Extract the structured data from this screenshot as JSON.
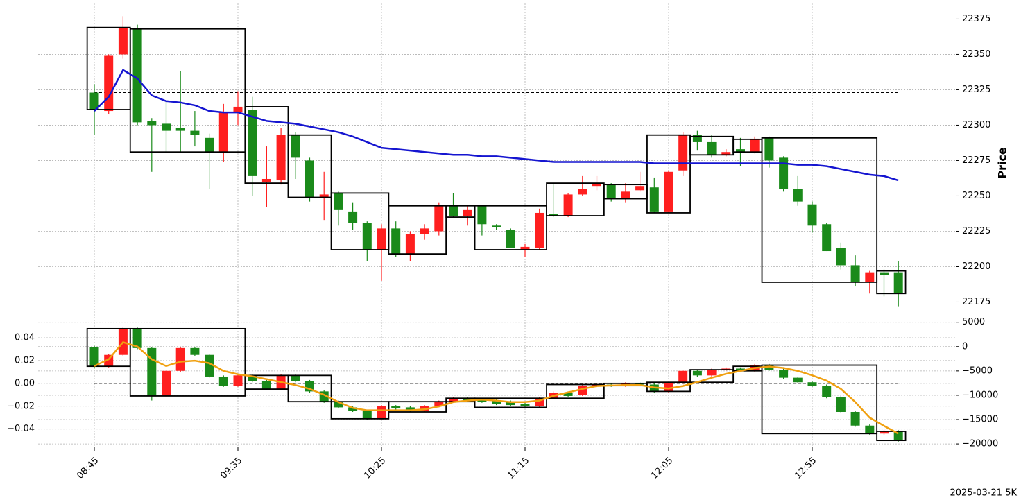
{
  "chart_data": [
    {
      "type": "candlestick",
      "ylabel": "Price",
      "ylim": [
        22162,
        22386
      ],
      "yticks": [
        22175,
        22200,
        22225,
        22250,
        22275,
        22300,
        22325,
        22350,
        22375
      ],
      "grid": true,
      "up_color": "#ff1f1f",
      "down_color": "#1a8a1a",
      "open": [
        22323,
        22310,
        22350,
        22368,
        22303,
        22301,
        22298,
        22296,
        22291,
        22281,
        22309,
        22311,
        22260,
        22261,
        22293,
        22275,
        22249,
        22252,
        22239,
        22231,
        22212,
        22227,
        22209,
        22223,
        22225,
        22243,
        22236,
        22243,
        22229,
        22226,
        22212,
        22213,
        22237,
        22236,
        22251,
        22257,
        22258,
        22248,
        22254,
        22256,
        22239,
        22268,
        22293,
        22288,
        22279,
        22283,
        22281,
        22291,
        22277,
        22255,
        22244,
        22230,
        22213,
        22201,
        22189,
        22196,
        22196
      ],
      "high": [
        22329,
        22350,
        22377,
        22371,
        22305,
        22317,
        22338,
        22310,
        22294,
        22315,
        22324,
        22320,
        22285,
        22298,
        22295,
        22277,
        22267,
        22253,
        22245,
        22232,
        22230,
        22232,
        22225,
        22230,
        22245,
        22252,
        22243,
        22243,
        22230,
        22227,
        22216,
        22241,
        22258,
        22252,
        22264,
        22264,
        22259,
        22259,
        22267,
        22263,
        22268,
        22295,
        22296,
        22293,
        22283,
        22291,
        22292,
        22292,
        22278,
        22264,
        22246,
        22231,
        22217,
        22208,
        22197,
        22198,
        22204
      ],
      "low": [
        22293,
        22308,
        22347,
        22300,
        22267,
        22281,
        22281,
        22285,
        22255,
        22274,
        22300,
        22250,
        22242,
        22258,
        22262,
        22246,
        22233,
        22229,
        22226,
        22204,
        22190,
        22207,
        22204,
        22219,
        22222,
        22235,
        22229,
        22222,
        22226,
        22213,
        22207,
        22212,
        22235,
        22235,
        22250,
        22254,
        22246,
        22245,
        22253,
        22238,
        22238,
        22264,
        22282,
        22277,
        22278,
        22271,
        22280,
        22270,
        22253,
        22243,
        22224,
        22211,
        22198,
        22186,
        22181,
        22179,
        22172
      ],
      "close": [
        22311,
        22349,
        22369,
        22302,
        22300,
        22296,
        22296,
        22293,
        22281,
        22309,
        22313,
        22264,
        22262,
        22293,
        22277,
        22249,
        22251,
        22240,
        22231,
        22212,
        22227,
        22209,
        22223,
        22227,
        22243,
        22236,
        22240,
        22230,
        22228,
        22213,
        22214,
        22238,
        22236,
        22251,
        22255,
        22259,
        22248,
        22253,
        22257,
        22239,
        22267,
        22293,
        22288,
        22279,
        22281,
        22281,
        22290,
        22275,
        22255,
        22246,
        22229,
        22211,
        22201,
        22189,
        22196,
        22194,
        22181
      ],
      "series": [
        {
          "color": "#1515d0",
          "values": [
            22310,
            22320,
            22339,
            22333,
            22321,
            22317,
            22316,
            22314,
            22310,
            22309,
            22309,
            22306,
            22303,
            22302,
            22301,
            22299,
            22297,
            22295,
            22292,
            22288,
            22284,
            22283,
            22282,
            22281,
            22280,
            22279,
            22279,
            22278,
            22278,
            22277,
            22276,
            22275,
            22274,
            22274,
            22274,
            22274,
            22274,
            22274,
            22274,
            22273,
            22273,
            22273,
            22273,
            22273,
            22273,
            22273,
            22273,
            22273,
            22273,
            22272,
            22272,
            22271,
            22269,
            22267,
            22265,
            22264,
            22261
          ]
        }
      ],
      "hline": 22323,
      "boxes": [
        {
          "start": 0,
          "end": 2,
          "high": 22369,
          "low": 22311
        },
        {
          "start": 3,
          "end": 10,
          "high": 22368,
          "low": 22281
        },
        {
          "start": 11,
          "end": 13,
          "high": 22313,
          "low": 22259
        },
        {
          "start": 14,
          "end": 16,
          "high": 22293,
          "low": 22249
        },
        {
          "start": 17,
          "end": 20,
          "high": 22252,
          "low": 22212
        },
        {
          "start": 21,
          "end": 24,
          "high": 22243,
          "low": 22209
        },
        {
          "start": 25,
          "end": 26,
          "high": 22243,
          "low": 22235
        },
        {
          "start": 27,
          "end": 31,
          "high": 22243,
          "low": 22212
        },
        {
          "start": 32,
          "end": 35,
          "high": 22259,
          "low": 22236
        },
        {
          "start": 36,
          "end": 38,
          "high": 22258,
          "low": 22248
        },
        {
          "start": 39,
          "end": 41,
          "high": 22293,
          "low": 22238
        },
        {
          "start": 42,
          "end": 44,
          "high": 22292,
          "low": 22279
        },
        {
          "start": 45,
          "end": 46,
          "high": 22290,
          "low": 22281
        },
        {
          "start": 47,
          "end": 54,
          "high": 22291,
          "low": 22189
        },
        {
          "start": 55,
          "end": 56,
          "high": 22197,
          "low": 22181
        }
      ]
    },
    {
      "type": "candlestick",
      "categories": [
        "08:45",
        null,
        null,
        null,
        null,
        null,
        null,
        null,
        null,
        null,
        "09:35",
        null,
        null,
        null,
        null,
        null,
        null,
        null,
        null,
        null,
        "10:25",
        null,
        null,
        null,
        null,
        null,
        null,
        null,
        null,
        null,
        "11:15",
        null,
        null,
        null,
        null,
        null,
        null,
        null,
        null,
        null,
        "12:05",
        null,
        null,
        null,
        null,
        null,
        null,
        null,
        null,
        null,
        "12:55",
        null,
        null,
        null,
        null,
        null,
        null
      ],
      "ylim": [
        -0.056,
        0.054
      ],
      "yticks": [
        {
          "value": -0.04,
          "label": "−0.04"
        },
        {
          "value": -0.02,
          "label": "−0.02"
        },
        {
          "value": 0,
          "label": "0.00"
        },
        0.02,
        0.04
      ],
      "y2lim": [
        -20700,
        5100
      ],
      "y2ticks": [
        {
          "value": -20000,
          "label": "−20000"
        },
        {
          "value": -15000,
          "label": "−15000"
        },
        {
          "value": -10000,
          "label": "−10000"
        },
        {
          "value": -5000,
          "label": "−5000"
        },
        0,
        5000
      ],
      "grid": true,
      "up_color": "#ff1f1f",
      "down_color": "#1a8a1a",
      "open": [
        0.032,
        0.015,
        0.025,
        0.048,
        0.031,
        -0.011,
        0.011,
        0.031,
        0.025,
        0.006,
        -0.002,
        0.007,
        0.002,
        -0.005,
        0.007,
        0.002,
        -0.007,
        -0.016,
        -0.021,
        -0.024,
        -0.031,
        -0.02,
        -0.021,
        -0.024,
        -0.02,
        -0.016,
        -0.013,
        -0.014,
        -0.015,
        -0.016,
        -0.018,
        -0.02,
        -0.013,
        -0.008,
        -0.01,
        -0.002,
        -0.001,
        -0.002,
        0,
        -0.001,
        -0.007,
        0,
        0.011,
        0.007,
        0.012,
        0.013,
        0.011,
        0.016,
        0.012,
        0.005,
        0.001,
        -0.002,
        -0.012,
        -0.025,
        -0.037,
        -0.044,
        -0.042
      ],
      "high": [
        0.033,
        0.026,
        0.049,
        0.049,
        0.032,
        0.012,
        0.032,
        0.032,
        0.026,
        0.007,
        0.008,
        0.008,
        0.003,
        0.008,
        0.008,
        0.003,
        -0.006,
        -0.015,
        -0.02,
        -0.023,
        -0.019,
        -0.019,
        -0.02,
        -0.019,
        -0.015,
        -0.012,
        -0.012,
        -0.013,
        -0.014,
        -0.015,
        -0.017,
        -0.012,
        -0.007,
        -0.007,
        -0.001,
        0,
        0,
        0.001,
        0.001,
        0,
        0.001,
        0.012,
        0.012,
        0.013,
        0.014,
        0.014,
        0.017,
        0.017,
        0.013,
        0.006,
        0.002,
        -0.001,
        -0.011,
        -0.024,
        -0.036,
        -0.041,
        -0.041
      ],
      "low": [
        0.013,
        0.014,
        0.024,
        0.03,
        -0.015,
        -0.012,
        0.01,
        0.024,
        0.005,
        -0.003,
        -0.003,
        0.001,
        -0.006,
        -0.006,
        0.001,
        -0.008,
        -0.017,
        -0.022,
        -0.025,
        -0.032,
        -0.032,
        -0.023,
        -0.025,
        -0.025,
        -0.021,
        -0.017,
        -0.016,
        -0.017,
        -0.019,
        -0.02,
        -0.021,
        -0.021,
        -0.014,
        -0.012,
        -0.011,
        -0.003,
        -0.003,
        -0.003,
        -0.002,
        -0.008,
        -0.008,
        -0.001,
        0.006,
        0.006,
        0.011,
        0.01,
        0.01,
        0.011,
        0.004,
        0,
        -0.003,
        -0.013,
        -0.026,
        -0.038,
        -0.045,
        -0.045,
        -0.051
      ],
      "close": [
        0.015,
        0.025,
        0.048,
        0.031,
        -0.011,
        0.011,
        0.031,
        0.025,
        0.006,
        -0.002,
        0.007,
        0.002,
        -0.005,
        0.007,
        0.002,
        -0.007,
        -0.016,
        -0.021,
        -0.024,
        -0.031,
        -0.02,
        -0.022,
        -0.024,
        -0.02,
        -0.016,
        -0.013,
        -0.015,
        -0.016,
        -0.018,
        -0.019,
        -0.02,
        -0.013,
        -0.008,
        -0.011,
        -0.002,
        -0.001,
        -0.002,
        0,
        -0.001,
        -0.007,
        0,
        0.011,
        0.007,
        0.012,
        0.013,
        0.011,
        0.016,
        0.012,
        0.005,
        0.001,
        -0.002,
        -0.012,
        -0.025,
        -0.037,
        -0.044,
        -0.042,
        -0.05
      ],
      "series": [
        {
          "color": "#f0a010",
          "axis": "y2",
          "values": [
            -4000,
            -2600,
            900,
            0,
            -2600,
            -4000,
            -3100,
            -2900,
            -3400,
            -5000,
            -5700,
            -6100,
            -6700,
            -7300,
            -7900,
            -8700,
            -9900,
            -11400,
            -12600,
            -13100,
            -13100,
            -13100,
            -13100,
            -12900,
            -12300,
            -11400,
            -11100,
            -10900,
            -11100,
            -11400,
            -11400,
            -11100,
            -10100,
            -9400,
            -8700,
            -8100,
            -8000,
            -7900,
            -7900,
            -8400,
            -8600,
            -8100,
            -7300,
            -6400,
            -5600,
            -5000,
            -4400,
            -4100,
            -4400,
            -5000,
            -5900,
            -7000,
            -8700,
            -11400,
            -14600,
            -16300,
            -17900
          ]
        }
      ],
      "hline": 0,
      "boxes": [
        {
          "start": 0,
          "end": 2,
          "high": 0.048,
          "low": 0.015
        },
        {
          "start": 3,
          "end": 10,
          "high": 0.048,
          "low": -0.011
        },
        {
          "start": 11,
          "end": 13,
          "high": 0.007,
          "low": -0.005
        },
        {
          "start": 14,
          "end": 16,
          "high": 0.007,
          "low": -0.016
        },
        {
          "start": 17,
          "end": 20,
          "high": -0.016,
          "low": -0.031
        },
        {
          "start": 21,
          "end": 24,
          "high": -0.016,
          "low": -0.025
        },
        {
          "start": 25,
          "end": 26,
          "high": -0.013,
          "low": -0.016
        },
        {
          "start": 27,
          "end": 31,
          "high": -0.013,
          "low": -0.021
        },
        {
          "start": 32,
          "end": 35,
          "high": -0.001,
          "low": -0.013
        },
        {
          "start": 36,
          "end": 38,
          "high": 0,
          "low": -0.002
        },
        {
          "start": 39,
          "end": 41,
          "high": 0.001,
          "low": -0.007
        },
        {
          "start": 42,
          "end": 44,
          "high": 0.012,
          "low": 0.001
        },
        {
          "start": 45,
          "end": 46,
          "high": 0.015,
          "low": 0.011
        },
        {
          "start": 47,
          "end": 54,
          "high": 0.016,
          "low": -0.044
        },
        {
          "start": 55,
          "end": 56,
          "high": -0.042,
          "low": -0.05
        }
      ],
      "footer": "2025-03-21 5K"
    }
  ]
}
